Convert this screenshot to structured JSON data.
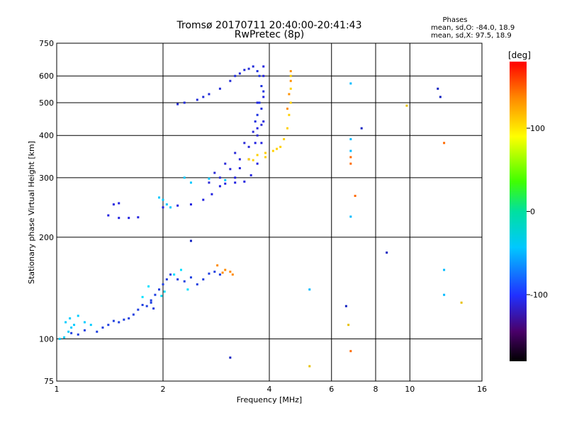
{
  "header": {
    "title_line1": "Tromsø 20170711 20:40:00-20:41:43",
    "title_line2": "RwPretec (8p)",
    "stats_title": "Phases",
    "stats_o": "mean, sd,O: -84.0, 18.9",
    "stats_x": "mean, sd,X:  97.5, 18.9"
  },
  "chart_data": {
    "type": "scatter",
    "xlabel": "Frequency [MHz]",
    "ylabel": "Stationary phase Virtual Height [km]",
    "x_scale": "log",
    "y_scale": "log",
    "xlim": [
      1,
      16
    ],
    "ylim": [
      75,
      750
    ],
    "x_ticks": [
      1,
      2,
      4,
      6,
      8,
      10,
      16
    ],
    "y_ticks": [
      75,
      100,
      200,
      300,
      400,
      500,
      600,
      750
    ],
    "grid": true,
    "colorbar": {
      "label": "[deg]",
      "range": [
        -180,
        180
      ],
      "ticks": [
        -100,
        0,
        100
      ]
    },
    "series": [
      {
        "color": "#00ccff",
        "points": [
          [
            1.02,
            100
          ],
          [
            1.05,
            101
          ],
          [
            1.08,
            105
          ],
          [
            1.1,
            108
          ],
          [
            1.12,
            110
          ],
          [
            1.06,
            112
          ],
          [
            1.09,
            115
          ],
          [
            1.15,
            117
          ],
          [
            1.2,
            112
          ],
          [
            1.25,
            110
          ]
        ]
      },
      {
        "color": "#1f3fe0",
        "points": [
          [
            1.1,
            104
          ],
          [
            1.15,
            103
          ],
          [
            1.2,
            106
          ],
          [
            1.3,
            105
          ],
          [
            1.35,
            108
          ],
          [
            1.4,
            110
          ],
          [
            1.45,
            113
          ],
          [
            1.5,
            112
          ],
          [
            1.55,
            114
          ],
          [
            1.6,
            115
          ],
          [
            1.65,
            118
          ],
          [
            1.7,
            122
          ],
          [
            1.75,
            126
          ],
          [
            1.8,
            125
          ],
          [
            1.85,
            130
          ],
          [
            1.9,
            135
          ],
          [
            1.95,
            140
          ],
          [
            2.0,
            145
          ],
          [
            2.05,
            150
          ],
          [
            2.1,
            155
          ],
          [
            2.2,
            150
          ],
          [
            2.3,
            148
          ],
          [
            2.4,
            152
          ],
          [
            2.5,
            145
          ],
          [
            2.6,
            150
          ],
          [
            2.7,
            156
          ],
          [
            2.8,
            158
          ],
          [
            2.9,
            155
          ],
          [
            1.85,
            128
          ],
          [
            1.88,
            123
          ]
        ]
      },
      {
        "color": "#00e0ff",
        "points": [
          [
            1.75,
            133
          ],
          [
            1.82,
            143
          ],
          [
            2.02,
            138
          ],
          [
            2.15,
            155
          ],
          [
            2.25,
            160
          ],
          [
            2.35,
            140
          ],
          [
            1.98,
            134
          ]
        ]
      },
      {
        "color": "#ff8a00",
        "points": [
          [
            3.0,
            160
          ],
          [
            3.1,
            158
          ],
          [
            3.15,
            155
          ],
          [
            2.85,
            165
          ],
          [
            2.95,
            157
          ]
        ]
      },
      {
        "color": "#2020e0",
        "points": [
          [
            1.4,
            232
          ],
          [
            1.5,
            228
          ],
          [
            1.6,
            228
          ],
          [
            1.7,
            229
          ],
          [
            1.45,
            250
          ],
          [
            1.5,
            252
          ],
          [
            2.0,
            245
          ],
          [
            2.2,
            248
          ],
          [
            2.4,
            250
          ],
          [
            2.6,
            258
          ],
          [
            2.75,
            268
          ],
          [
            2.9,
            283
          ],
          [
            3.0,
            288
          ],
          [
            3.2,
            290
          ],
          [
            3.4,
            292
          ],
          [
            3.55,
            305
          ],
          [
            3.7,
            330
          ],
          [
            3.8,
            380
          ],
          [
            3.85,
            440
          ],
          [
            3.85,
            520
          ],
          [
            3.85,
            600
          ],
          [
            3.85,
            640
          ],
          [
            3.7,
            500
          ],
          [
            3.7,
            420
          ],
          [
            3.65,
            380
          ],
          [
            3.5,
            340
          ],
          [
            3.3,
            320
          ],
          [
            3.2,
            300
          ]
        ]
      },
      {
        "color": "#00c8ff",
        "points": [
          [
            2.0,
            258
          ],
          [
            2.05,
            250
          ],
          [
            1.95,
            262
          ],
          [
            2.1,
            245
          ],
          [
            2.3,
            300
          ],
          [
            2.4,
            290
          ],
          [
            2.7,
            298
          ],
          [
            3.0,
            295
          ]
        ]
      },
      {
        "color": "#202ad8",
        "points": [
          [
            2.3,
            500
          ],
          [
            2.5,
            510
          ],
          [
            2.7,
            530
          ],
          [
            2.9,
            550
          ],
          [
            3.1,
            580
          ],
          [
            3.3,
            610
          ],
          [
            3.5,
            630
          ],
          [
            3.6,
            640
          ],
          [
            2.2,
            495
          ],
          [
            2.6,
            520
          ],
          [
            3.2,
            600
          ],
          [
            3.4,
            625
          ]
        ]
      },
      {
        "color": "#2a2ad8",
        "points": [
          [
            2.7,
            290
          ],
          [
            2.9,
            300
          ],
          [
            3.1,
            318
          ],
          [
            3.3,
            340
          ],
          [
            3.5,
            370
          ],
          [
            3.7,
            400
          ],
          [
            3.8,
            430
          ],
          [
            2.8,
            310
          ],
          [
            3.0,
            330
          ],
          [
            3.2,
            355
          ],
          [
            3.4,
            380
          ],
          [
            3.6,
            410
          ]
        ]
      },
      {
        "color": "#1a30e0",
        "points": [
          [
            3.7,
            460
          ],
          [
            3.75,
            500
          ],
          [
            3.8,
            560
          ],
          [
            3.75,
            600
          ],
          [
            3.7,
            620
          ],
          [
            3.8,
            480
          ],
          [
            3.85,
            540
          ],
          [
            3.65,
            440
          ]
        ]
      },
      {
        "color": "#ffd000",
        "points": [
          [
            3.5,
            340
          ],
          [
            3.7,
            350
          ],
          [
            3.9,
            355
          ],
          [
            4.1,
            360
          ],
          [
            4.3,
            370
          ],
          [
            4.4,
            390
          ],
          [
            4.5,
            420
          ],
          [
            4.55,
            460
          ],
          [
            4.6,
            500
          ],
          [
            4.6,
            550
          ],
          [
            4.6,
            600
          ],
          [
            3.9,
            345
          ],
          [
            4.2,
            365
          ],
          [
            3.6,
            338
          ]
        ]
      },
      {
        "color": "#ff9000",
        "points": [
          [
            4.5,
            480
          ],
          [
            4.55,
            530
          ],
          [
            4.6,
            580
          ],
          [
            4.6,
            620
          ]
        ]
      },
      {
        "color": "#00bbff",
        "points": [
          [
            6.8,
            390
          ],
          [
            6.8,
            360
          ],
          [
            6.8,
            230
          ],
          [
            6.8,
            570
          ],
          [
            5.2,
            140
          ],
          [
            12.5,
            160
          ],
          [
            12.5,
            135
          ]
        ]
      },
      {
        "color": "#ff6a00",
        "points": [
          [
            6.8,
            330
          ],
          [
            6.8,
            345
          ],
          [
            7.0,
            265
          ],
          [
            6.8,
            92
          ],
          [
            12.5,
            380
          ]
        ]
      },
      {
        "color": "#1020c0",
        "points": [
          [
            7.3,
            420
          ],
          [
            8.6,
            180
          ],
          [
            12.0,
            550
          ],
          [
            12.2,
            520
          ],
          [
            6.6,
            125
          ],
          [
            3.1,
            88
          ],
          [
            2.4,
            195
          ]
        ]
      },
      {
        "color": "#e8c000",
        "points": [
          [
            6.7,
            110
          ],
          [
            5.2,
            83
          ],
          [
            9.8,
            490
          ],
          [
            14.0,
            128
          ]
        ]
      }
    ]
  }
}
